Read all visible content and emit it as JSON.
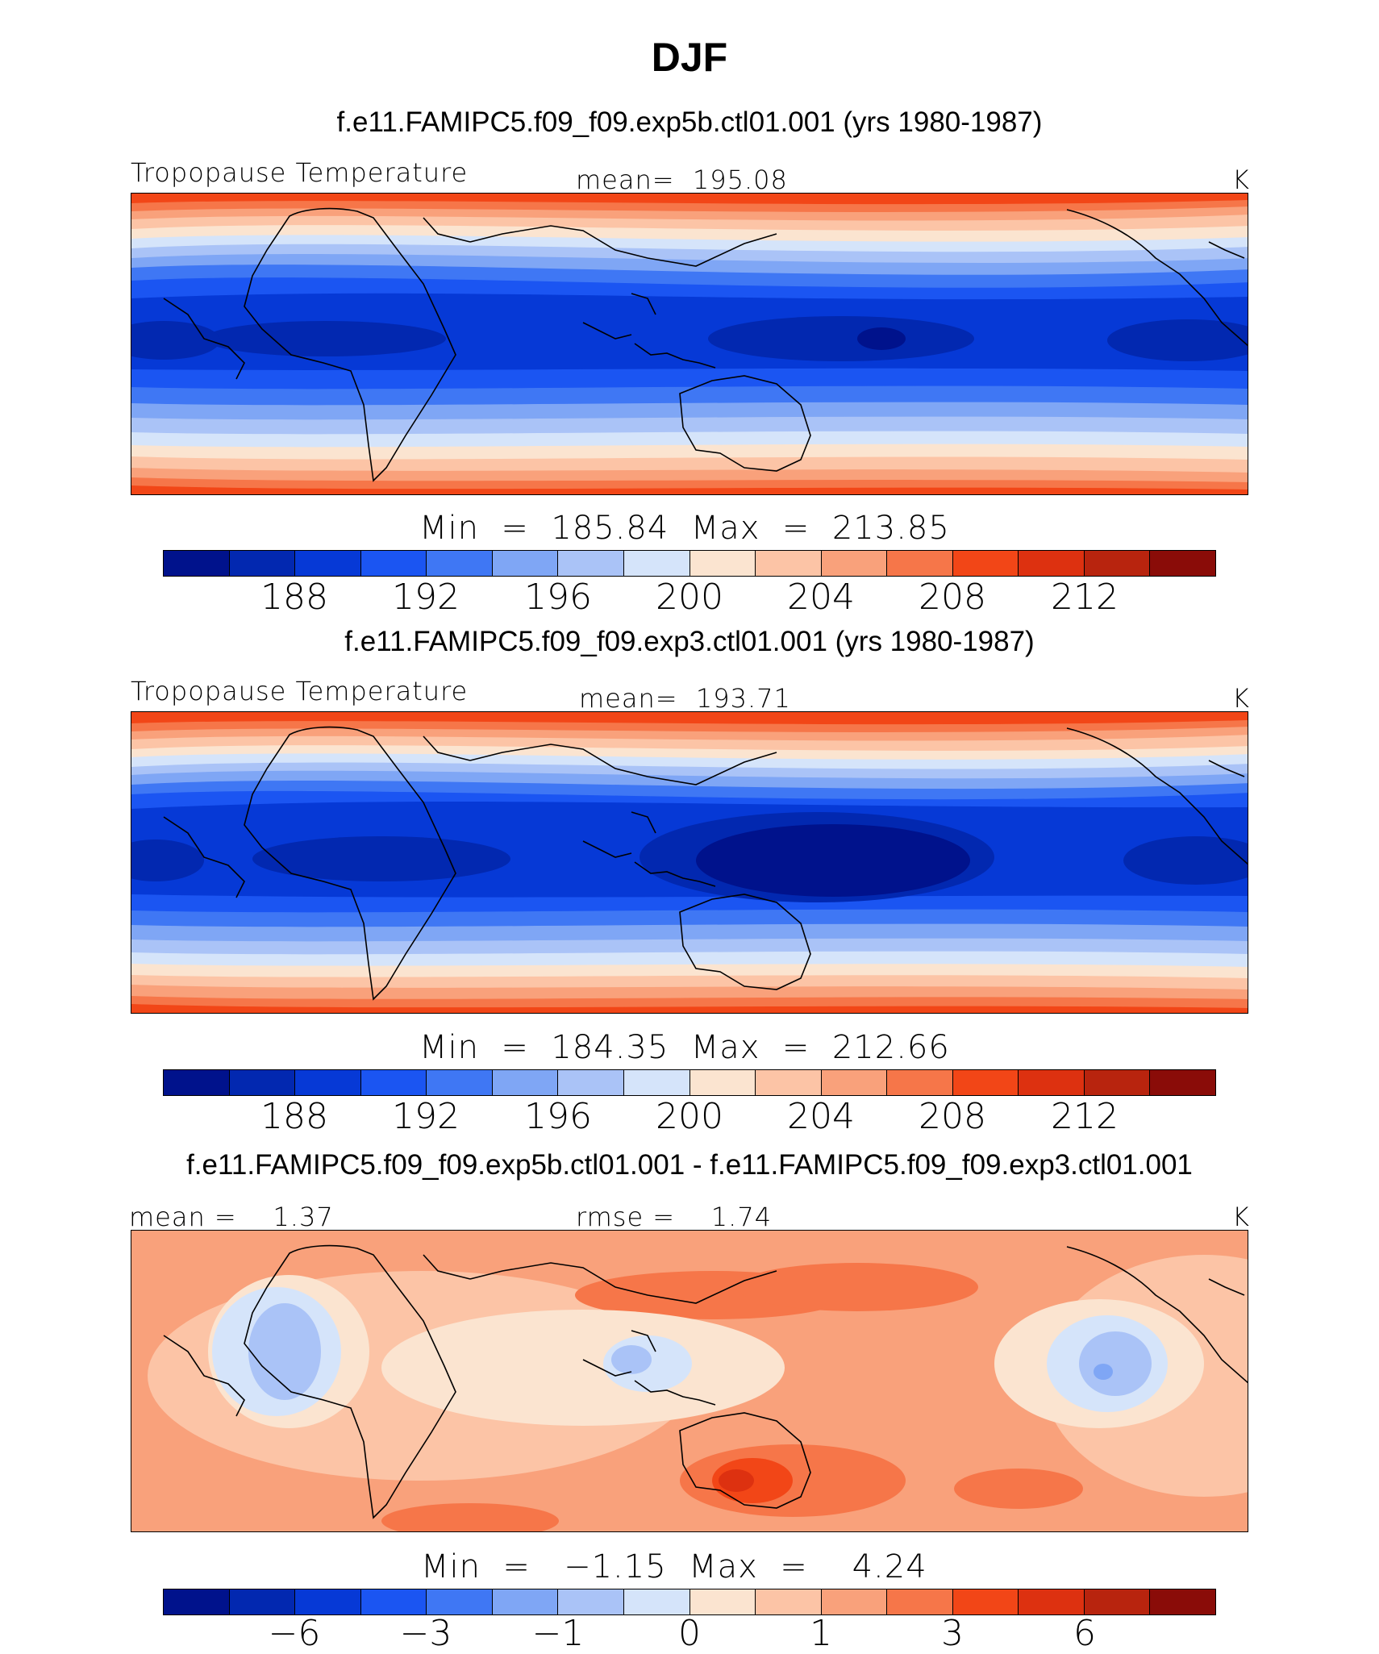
{
  "figure": {
    "title": "DJF",
    "units": "K",
    "colors": [
      "#00128c",
      "#0228b0",
      "#0639d6",
      "#1b55f2",
      "#3f77f4",
      "#7fa6f5",
      "#aac3f7",
      "#d5e4fa",
      "#fbe4d0",
      "#fcc4a6",
      "#f9a17b",
      "#f67649",
      "#f24617",
      "#dd3110",
      "#b8240e",
      "#8a0c08"
    ]
  },
  "panels": [
    {
      "run_title": "f.e11.FAMIPC5.f09_f09.exp5b.ctl01.001 (yrs 1980-1987)",
      "variable": "Tropopause Temperature",
      "stat_label": "mean=",
      "stat_value": "195.08",
      "units": "K",
      "min_label": "Min",
      "min_value": "185.84",
      "max_label": "Max",
      "max_value": "213.85",
      "colorbar_ticks": [
        "188",
        "192",
        "196",
        "200",
        "204",
        "208",
        "212"
      ]
    },
    {
      "run_title": "f.e11.FAMIPC5.f09_f09.exp3.ctl01.001 (yrs 1980-1987)",
      "variable": "Tropopause Temperature",
      "stat_label": "mean=",
      "stat_value": "193.71",
      "units": "K",
      "min_label": "Min",
      "min_value": "184.35",
      "max_label": "Max",
      "max_value": "212.66",
      "colorbar_ticks": [
        "188",
        "192",
        "196",
        "200",
        "204",
        "208",
        "212"
      ]
    },
    {
      "run_title": "f.e11.FAMIPC5.f09_f09.exp5b.ctl01.001 - f.e11.FAMIPC5.f09_f09.exp3.ctl01.001",
      "stat_label": "mean =",
      "stat_value": "1.37",
      "rmse_label": "rmse =",
      "rmse_value": "1.74",
      "units": "K",
      "min_label": "Min",
      "min_value": "−1.15",
      "max_label": "Max",
      "max_value": "4.24",
      "colorbar_ticks": [
        "−6",
        "−3",
        "−1",
        "0",
        "1",
        "3",
        "6"
      ]
    }
  ]
}
